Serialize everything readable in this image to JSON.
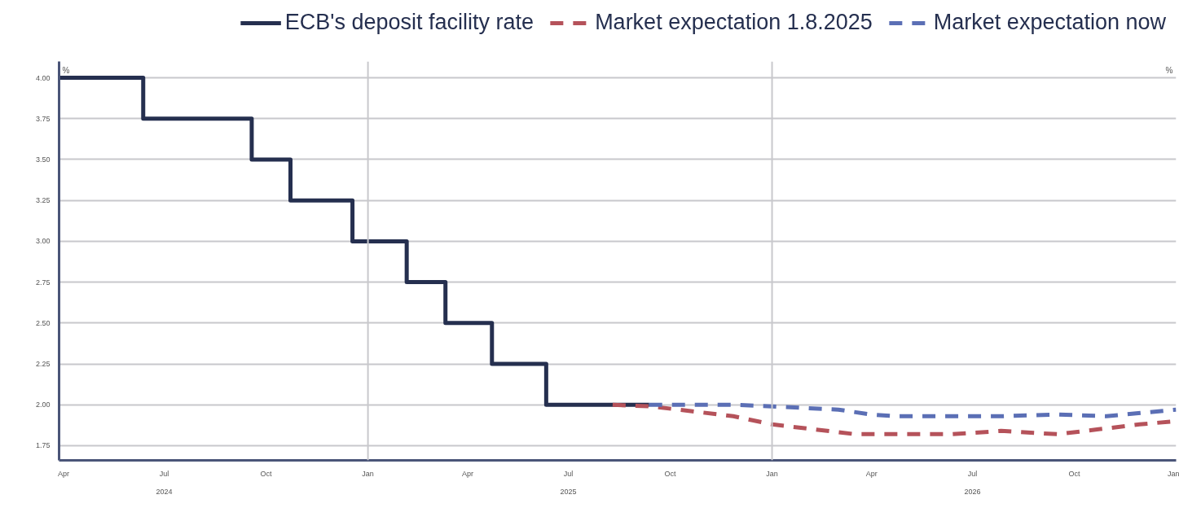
{
  "chart_data": {
    "type": "line",
    "ylabel": "%",
    "y2label": "%",
    "series": [
      {
        "name": "ECB's deposit facility rate",
        "type": "step",
        "color": "#252f4f",
        "line_style": "solid",
        "x": [
          "2024-03-28",
          "2024-06-12",
          "2024-09-18",
          "2024-10-23",
          "2024-12-18",
          "2025-02-05",
          "2025-03-12",
          "2025-04-23",
          "2025-06-11",
          "2025-09-12"
        ],
        "values": [
          4.0,
          3.75,
          3.5,
          3.25,
          3.0,
          2.75,
          2.5,
          2.25,
          2.0,
          2.0
        ]
      },
      {
        "name": "Market expectation 1.8.2025",
        "color": "#b5525a",
        "line_style": "dashed",
        "x": [
          "2025-08-10",
          "2025-09-14",
          "2025-10-21",
          "2025-11-27",
          "2026-01-01",
          "2026-02-08",
          "2026-03-17",
          "2026-04-23",
          "2026-06-13",
          "2026-07-27",
          "2026-09-16",
          "2026-10-23",
          "2026-11-29",
          "2027-01-01"
        ],
        "values": [
          2.0,
          1.99,
          1.96,
          1.93,
          1.88,
          1.85,
          1.82,
          1.82,
          1.82,
          1.84,
          1.82,
          1.85,
          1.88,
          1.9
        ]
      },
      {
        "name": "Market expectation now",
        "color": "#5b6fb5",
        "line_style": "dashed",
        "x": [
          "2025-09-12",
          "2025-11-27",
          "2026-01-01",
          "2026-03-02",
          "2026-04-01",
          "2026-04-23",
          "2026-07-27",
          "2026-09-16",
          "2026-10-30",
          "2027-01-01"
        ],
        "values": [
          2.0,
          2.0,
          1.99,
          1.97,
          1.94,
          1.93,
          1.93,
          1.94,
          1.93,
          1.97
        ]
      }
    ],
    "xlim": [
      "2024-03-28",
      "2027-01-01"
    ],
    "ylim": [
      1.66,
      4.1
    ],
    "xticks": [
      {
        "value": "2024-04-01",
        "label": "Apr"
      },
      {
        "value": "2024-07-01",
        "label": "Jul"
      },
      {
        "value": "2024-10-01",
        "label": "Oct"
      },
      {
        "value": "2025-01-01",
        "label": "Jan"
      },
      {
        "value": "2025-04-01",
        "label": "Apr"
      },
      {
        "value": "2025-07-01",
        "label": "Jul"
      },
      {
        "value": "2025-10-01",
        "label": "Oct"
      },
      {
        "value": "2026-01-01",
        "label": "Jan"
      },
      {
        "value": "2026-04-01",
        "label": "Apr"
      },
      {
        "value": "2026-07-01",
        "label": "Jul"
      },
      {
        "value": "2026-10-01",
        "label": "Oct"
      },
      {
        "value": "2027-01-01",
        "label": "Jan"
      }
    ],
    "yticks": [
      {
        "value": 1.75,
        "label": "1.75"
      },
      {
        "value": 2.0,
        "label": "2.00"
      },
      {
        "value": 2.25,
        "label": "2.25"
      },
      {
        "value": 2.5,
        "label": "2.50"
      },
      {
        "value": 2.75,
        "label": "2.75"
      },
      {
        "value": 3.0,
        "label": "3.00"
      },
      {
        "value": 3.25,
        "label": "3.25"
      },
      {
        "value": 3.5,
        "label": "3.50"
      },
      {
        "value": 3.75,
        "label": "3.75"
      },
      {
        "value": 4.0,
        "label": "4.00"
      }
    ],
    "x2lim": [
      "2024-03-28",
      "2027-01-01"
    ],
    "x2ticks": [
      {
        "value": "2024-07-01",
        "label": "2024"
      },
      {
        "value": "2025-07-01",
        "label": "2025"
      },
      {
        "value": "2026-07-01",
        "label": "2026"
      }
    ],
    "ref_lines": [
      {
        "axis": "x",
        "value": "2025-01-01",
        "label": null,
        "color": "#c8c8cc"
      },
      {
        "axis": "x",
        "value": "2026-01-01",
        "label": null,
        "color": "#c8c8cc"
      }
    ],
    "grid": "y",
    "legend": "top"
  }
}
